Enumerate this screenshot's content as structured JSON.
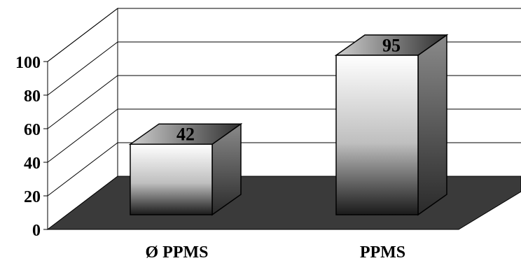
{
  "chart_data": {
    "type": "bar",
    "style": "3d",
    "categories": [
      "Ø PPMS",
      "PPMS"
    ],
    "values": [
      42,
      95
    ],
    "data_labels": [
      "42",
      "95"
    ],
    "y_ticks": [
      "0",
      "20",
      "40",
      "60",
      "80",
      "100"
    ],
    "ylim": [
      0,
      100
    ],
    "grid": true,
    "legend": "none",
    "colors": {
      "floor": "#3a3a3a",
      "bar_front_light": "#ffffff",
      "bar_front_dark": "#1a1a1a",
      "bar_side_light": "#8a8a8a",
      "bar_side_dark": "#2a2a2a",
      "bar_top_light": "#cfcfcf",
      "bar_top_dark": "#2f2f2f"
    }
  }
}
